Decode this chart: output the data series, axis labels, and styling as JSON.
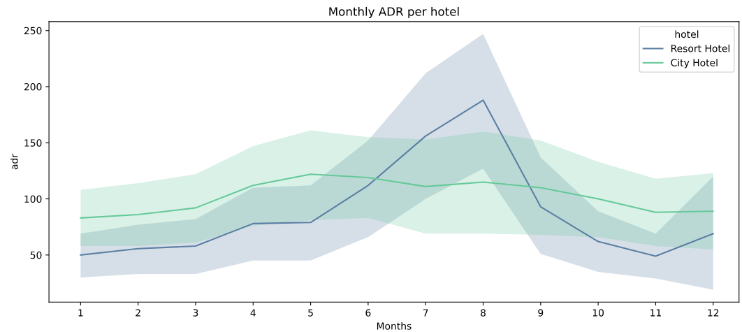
{
  "chart_data": {
    "type": "line",
    "title": "Monthly ADR per hotel",
    "xlabel": "Months",
    "ylabel": "adr",
    "legend_title": "hotel",
    "legend": "top right",
    "grid": false,
    "x": [
      1,
      2,
      3,
      4,
      5,
      6,
      7,
      8,
      9,
      10,
      11,
      12
    ],
    "series": [
      {
        "name": "Resort Hotel",
        "color": "#5b7fa3",
        "values": [
          50,
          55.6,
          58,
          78,
          79,
          112,
          156,
          188,
          93,
          62,
          49,
          69
        ],
        "lower": [
          30,
          33,
          33,
          45,
          45,
          66,
          100,
          127,
          51,
          35,
          29,
          19
        ],
        "upper": [
          69,
          77,
          82,
          110,
          112,
          152,
          212,
          247,
          137,
          89,
          69,
          120
        ]
      },
      {
        "name": "City Hotel",
        "color": "#66c99a",
        "values": [
          83,
          86,
          92,
          112,
          122,
          119,
          111,
          115,
          110,
          100,
          88,
          89
        ],
        "lower": [
          58,
          58,
          61,
          76,
          81,
          83,
          69,
          69,
          68,
          66,
          58,
          55
        ],
        "upper": [
          108,
          114,
          122,
          147,
          161,
          155,
          153,
          160,
          152,
          133,
          118,
          123
        ]
      }
    ],
    "xlim": [
      0.45,
      12.45
    ],
    "ylim": [
      8,
      258
    ],
    "xticks": [
      1,
      2,
      3,
      4,
      5,
      6,
      7,
      8,
      9,
      10,
      11,
      12
    ],
    "yticks": [
      50,
      100,
      150,
      200,
      250
    ]
  }
}
